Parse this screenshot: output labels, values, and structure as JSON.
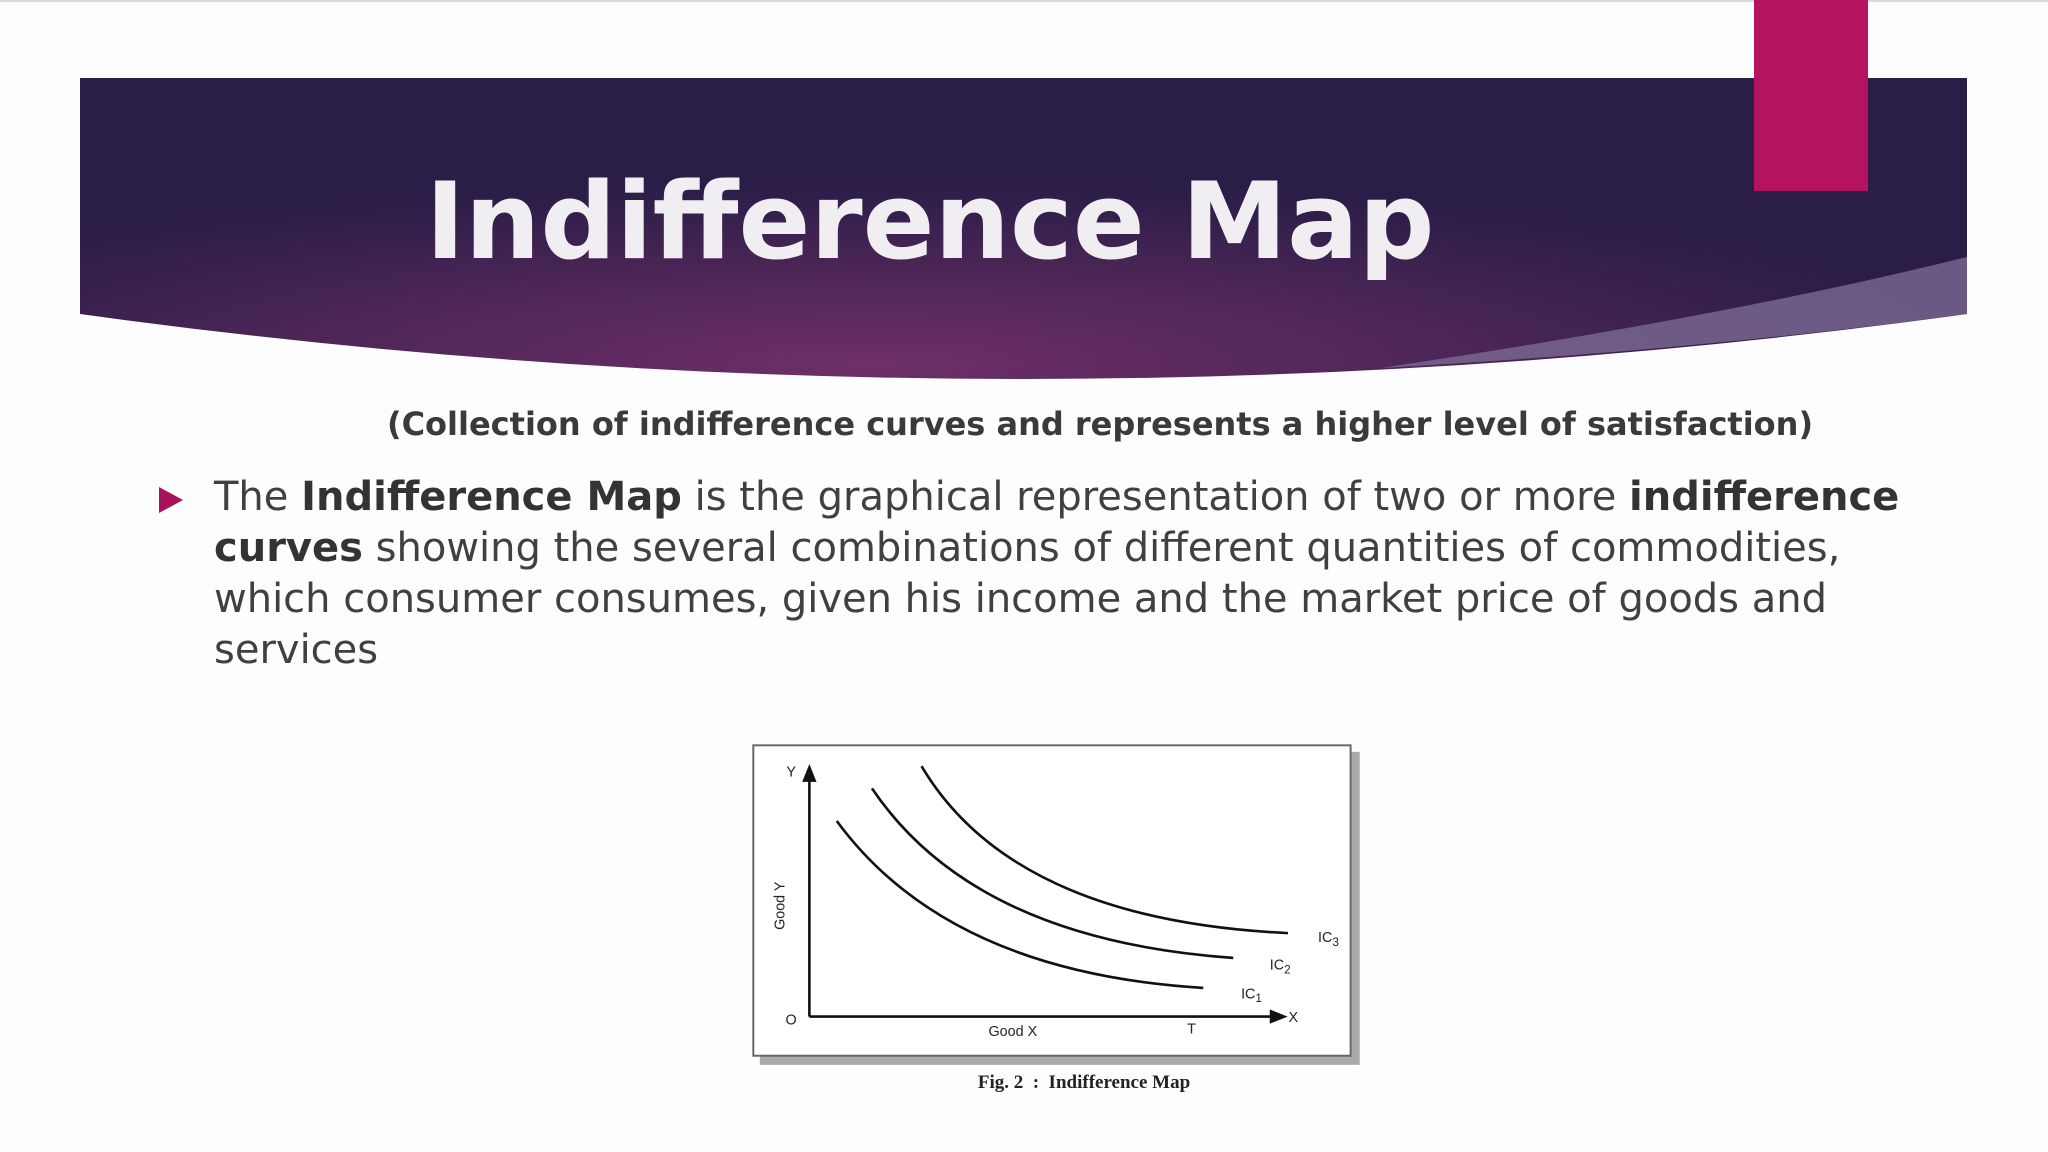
{
  "header": {
    "title": "Indifference Map"
  },
  "subtitle": "(Collection of indifference curves and represents a higher level of satisfaction)",
  "bullet": {
    "segments": [
      {
        "text": "The ",
        "bold": false
      },
      {
        "text": "Indifference Map",
        "bold": true
      },
      {
        "text": " is the graphical representation of two or more ",
        "bold": false
      },
      {
        "text": "indifference curves",
        "bold": true
      },
      {
        "text": " showing the several combinations of different quantities of commodities, which consumer consumes, given his income and the market price of goods and services",
        "bold": false
      }
    ]
  },
  "figure": {
    "y_axis_letter": "Y",
    "x_axis_letter": "X",
    "origin": "O",
    "y_axis_label": "Good Y",
    "x_axis_label": "Good X",
    "x_mark": "T",
    "curves": [
      {
        "label": "IC",
        "sub": "1"
      },
      {
        "label": "IC",
        "sub": "2"
      },
      {
        "label": "IC",
        "sub": "3"
      }
    ],
    "caption": "Fig. 2  :  Indifference Map"
  }
}
